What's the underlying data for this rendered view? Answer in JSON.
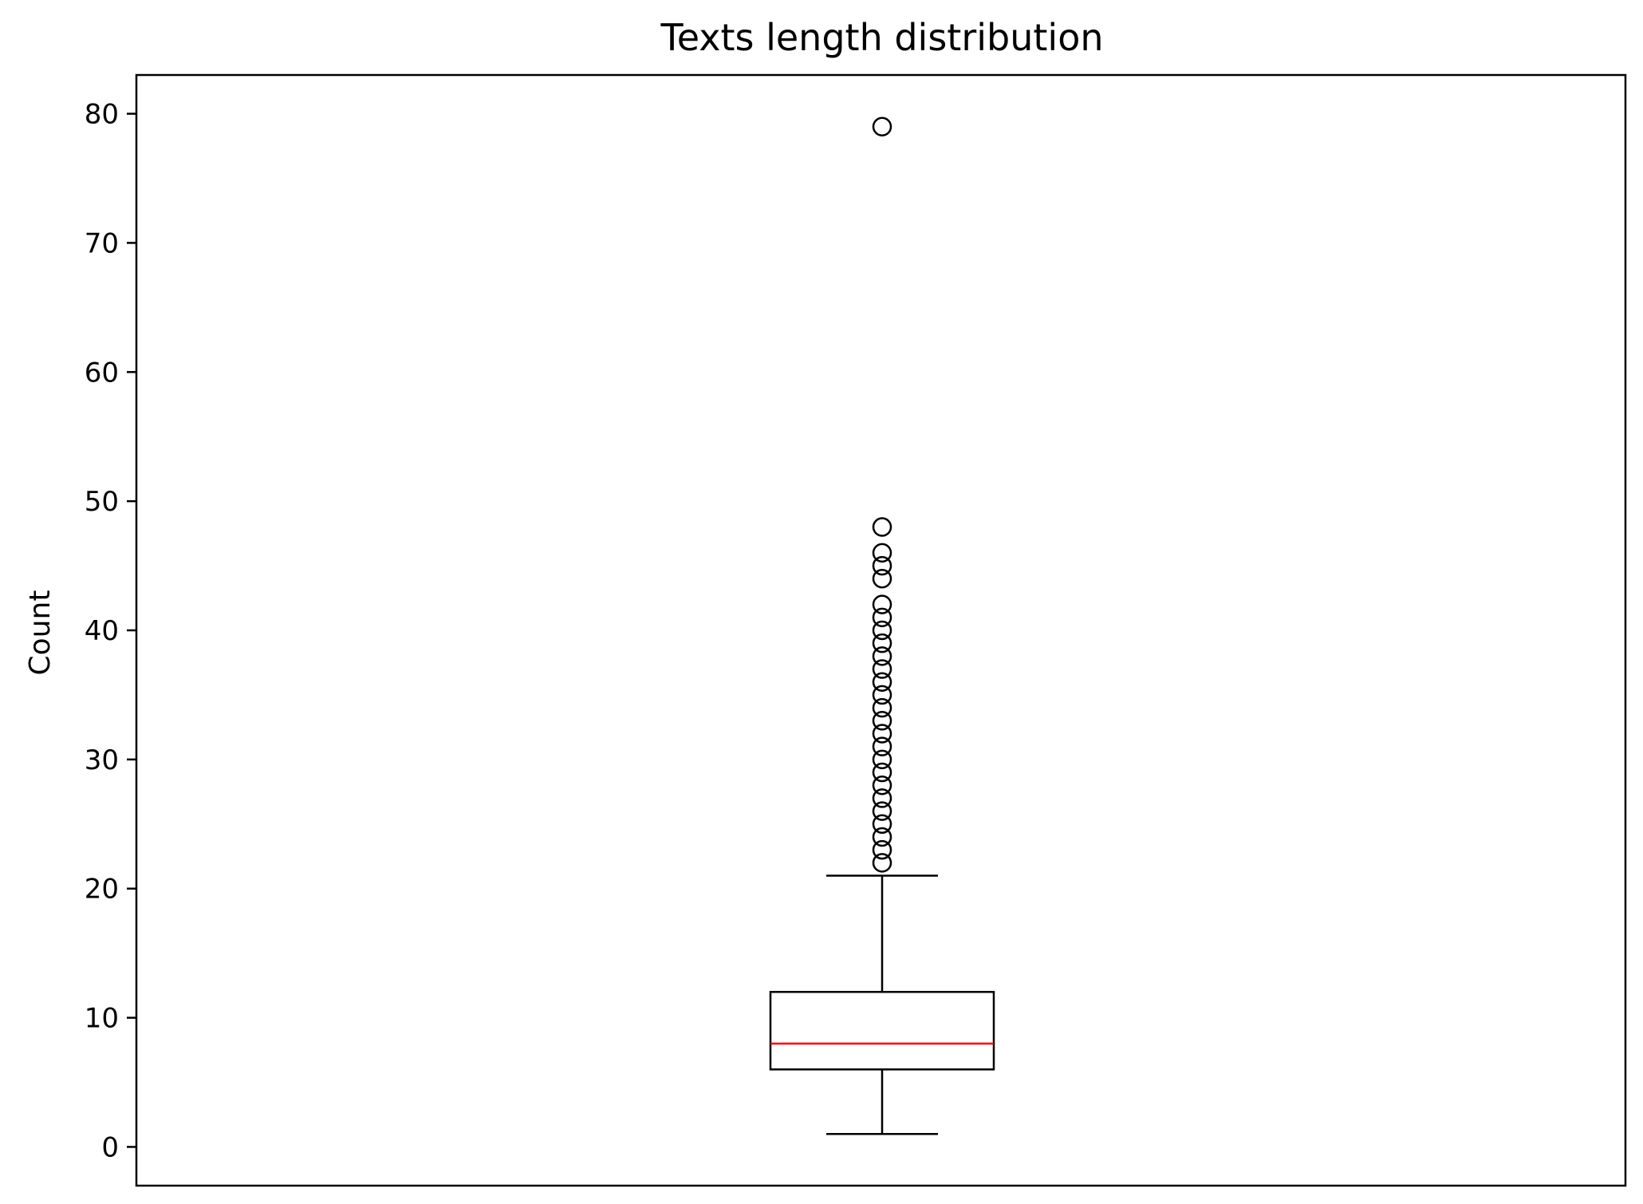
{
  "chart_data": {
    "type": "boxplot",
    "title": "Texts length distribution",
    "xlabel": "",
    "ylabel": "Count",
    "ylim": [
      -3,
      83
    ],
    "yticks": [
      0,
      10,
      20,
      30,
      40,
      50,
      60,
      70,
      80
    ],
    "ytick_labels": [
      "0",
      "10",
      "20",
      "30",
      "40",
      "50",
      "60",
      "70",
      "80"
    ],
    "x_ticks_visible": false,
    "grid": false,
    "legend": "none",
    "boxes": [
      {
        "whisker_low": 1,
        "q1": 6,
        "median": 8,
        "q3": 12,
        "whisker_high": 21,
        "outliers": [
          22,
          23,
          24,
          25,
          26,
          27,
          28,
          29,
          30,
          31,
          32,
          33,
          34,
          35,
          36,
          37,
          38,
          39,
          40,
          41,
          42,
          44,
          45,
          46,
          48,
          79
        ]
      }
    ],
    "colors": {
      "box": "#000000",
      "median": "#ff0000",
      "whisker": "#000000",
      "outlier": "#000000"
    }
  }
}
